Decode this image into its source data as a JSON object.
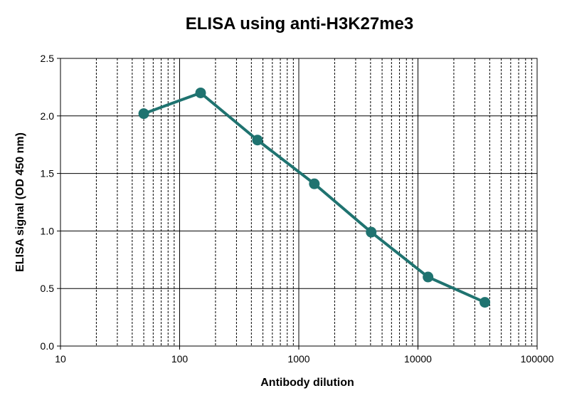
{
  "chart_data": {
    "type": "line",
    "title": "ELISA using anti-H3K27me3",
    "xlabel": "Antibody dilution",
    "ylabel": "ELISA signal (OD 450 nm)",
    "x_scale": "log",
    "xlim": [
      10,
      100000
    ],
    "ylim": [
      0,
      2.5
    ],
    "x_ticks": [
      "10",
      "100",
      "1000",
      "10000",
      "100000"
    ],
    "y_ticks": [
      "0.0",
      "0.5",
      "1.0",
      "1.5",
      "2.0",
      "2.5"
    ],
    "grid": true,
    "series": [
      {
        "x": [
          50,
          150,
          450,
          1350,
          4050,
          12150,
          36450
        ],
        "values": [
          2.02,
          2.2,
          1.79,
          1.41,
          0.99,
          0.6,
          0.38
        ]
      }
    ],
    "colors": {
      "series": "#1f7370",
      "grid": "#000000"
    }
  }
}
